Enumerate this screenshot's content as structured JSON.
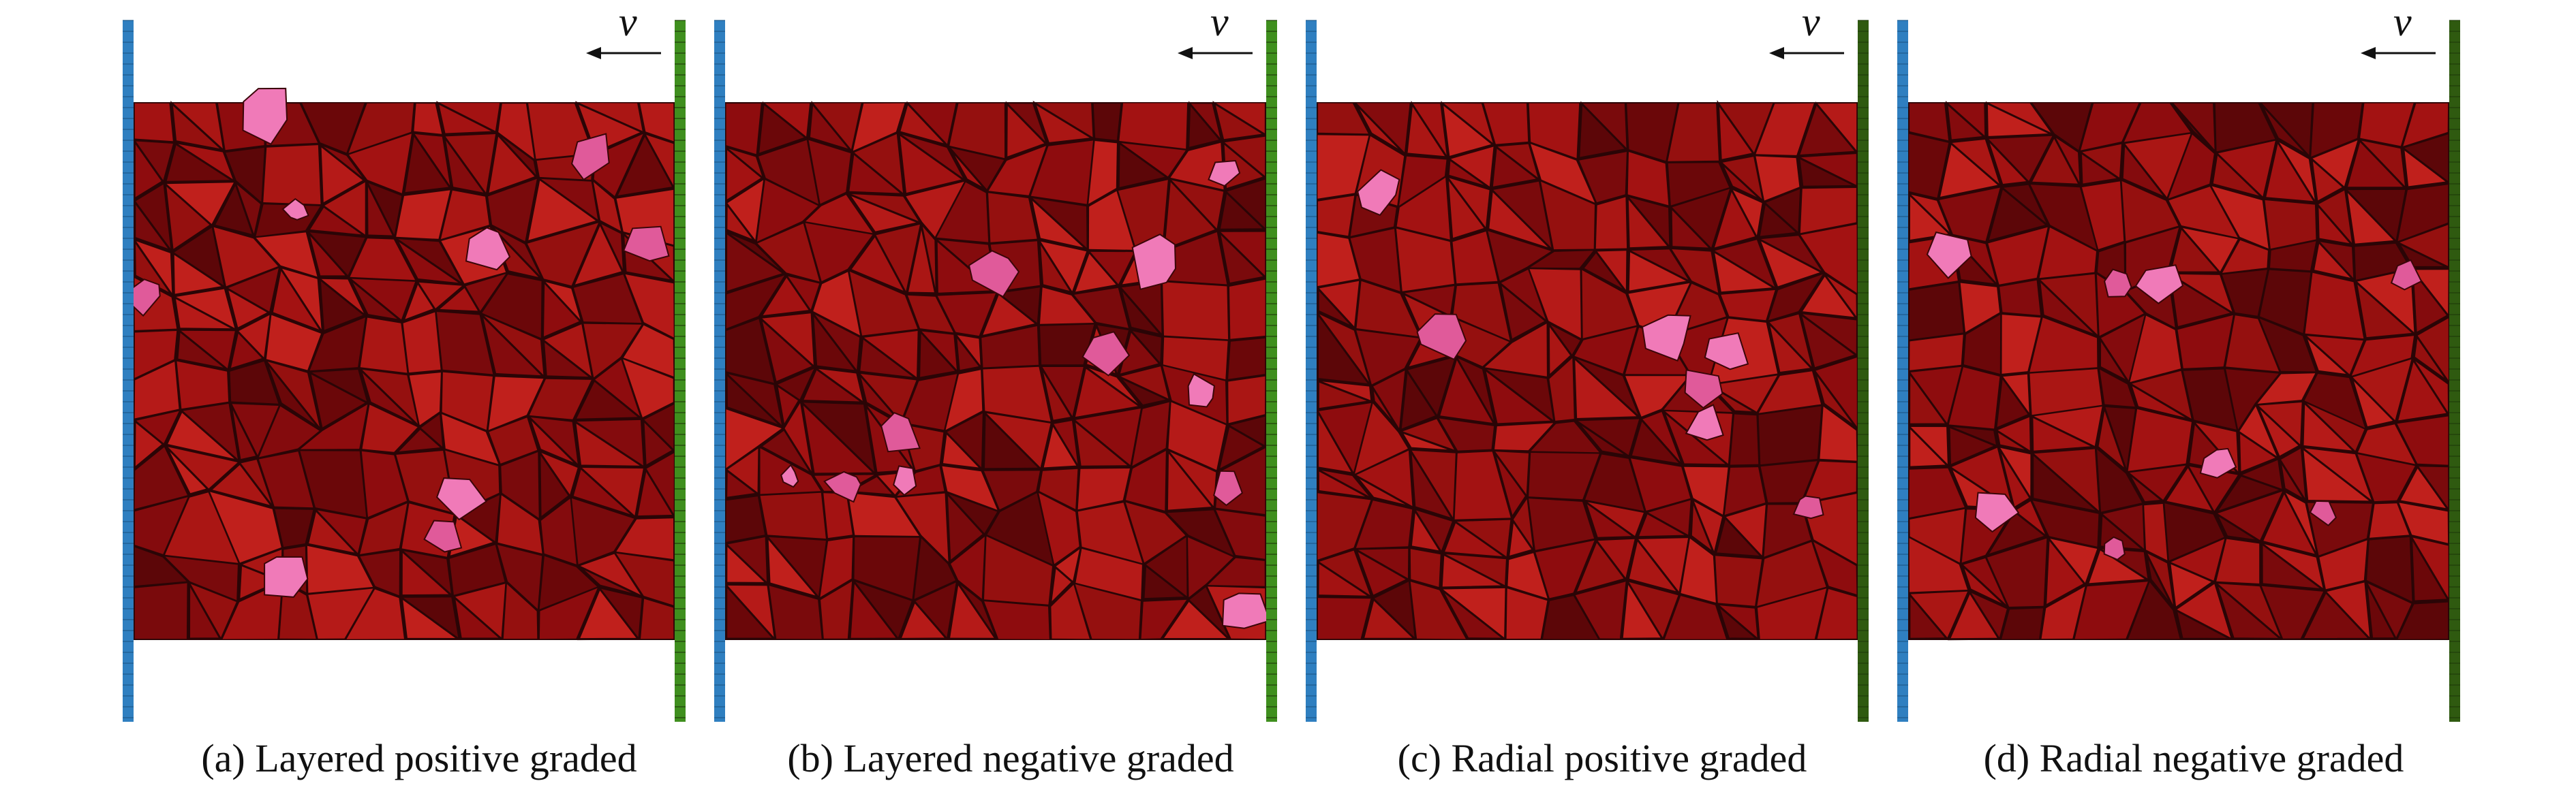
{
  "figure": {
    "velocity_symbol": "v",
    "panels": [
      {
        "caption": "(a) Layered positive graded",
        "right_plate_color": "#3f8f1e",
        "seed": 11,
        "pink_grains": [
          [
            0.25,
            0.02
          ],
          [
            0.84,
            0.1
          ],
          [
            0.3,
            0.2
          ],
          [
            0.95,
            0.26
          ],
          [
            0.65,
            0.27
          ],
          [
            0.02,
            0.36
          ],
          [
            0.6,
            0.73
          ],
          [
            0.57,
            0.81
          ],
          [
            0.28,
            0.88
          ]
        ]
      },
      {
        "caption": "(b) Layered negative graded",
        "right_plate_color": "#3f8f1e",
        "seed": 23,
        "pink_grains": [
          [
            0.92,
            0.13
          ],
          [
            0.5,
            0.31
          ],
          [
            0.8,
            0.3
          ],
          [
            0.7,
            0.46
          ],
          [
            0.88,
            0.54
          ],
          [
            0.32,
            0.62
          ],
          [
            0.12,
            0.7
          ],
          [
            0.22,
            0.71
          ],
          [
            0.33,
            0.7
          ],
          [
            0.93,
            0.72
          ],
          [
            0.96,
            0.95
          ]
        ]
      },
      {
        "caption": "(c) Radial positive graded",
        "right_plate_color": "#2f5a10",
        "seed": 37,
        "pink_grains": [
          [
            0.12,
            0.17
          ],
          [
            0.23,
            0.43
          ],
          [
            0.76,
            0.47
          ],
          [
            0.72,
            0.53
          ],
          [
            0.65,
            0.43
          ],
          [
            0.91,
            0.75
          ],
          [
            0.72,
            0.6
          ]
        ]
      },
      {
        "caption": "(d) Radial negative graded",
        "right_plate_color": "#2f5a10",
        "seed": 53,
        "pink_grains": [
          [
            0.08,
            0.28
          ],
          [
            0.39,
            0.34
          ],
          [
            0.46,
            0.34
          ],
          [
            0.92,
            0.32
          ],
          [
            0.57,
            0.67
          ],
          [
            0.77,
            0.76
          ],
          [
            0.16,
            0.76
          ],
          [
            0.38,
            0.83
          ]
        ]
      }
    ]
  }
}
